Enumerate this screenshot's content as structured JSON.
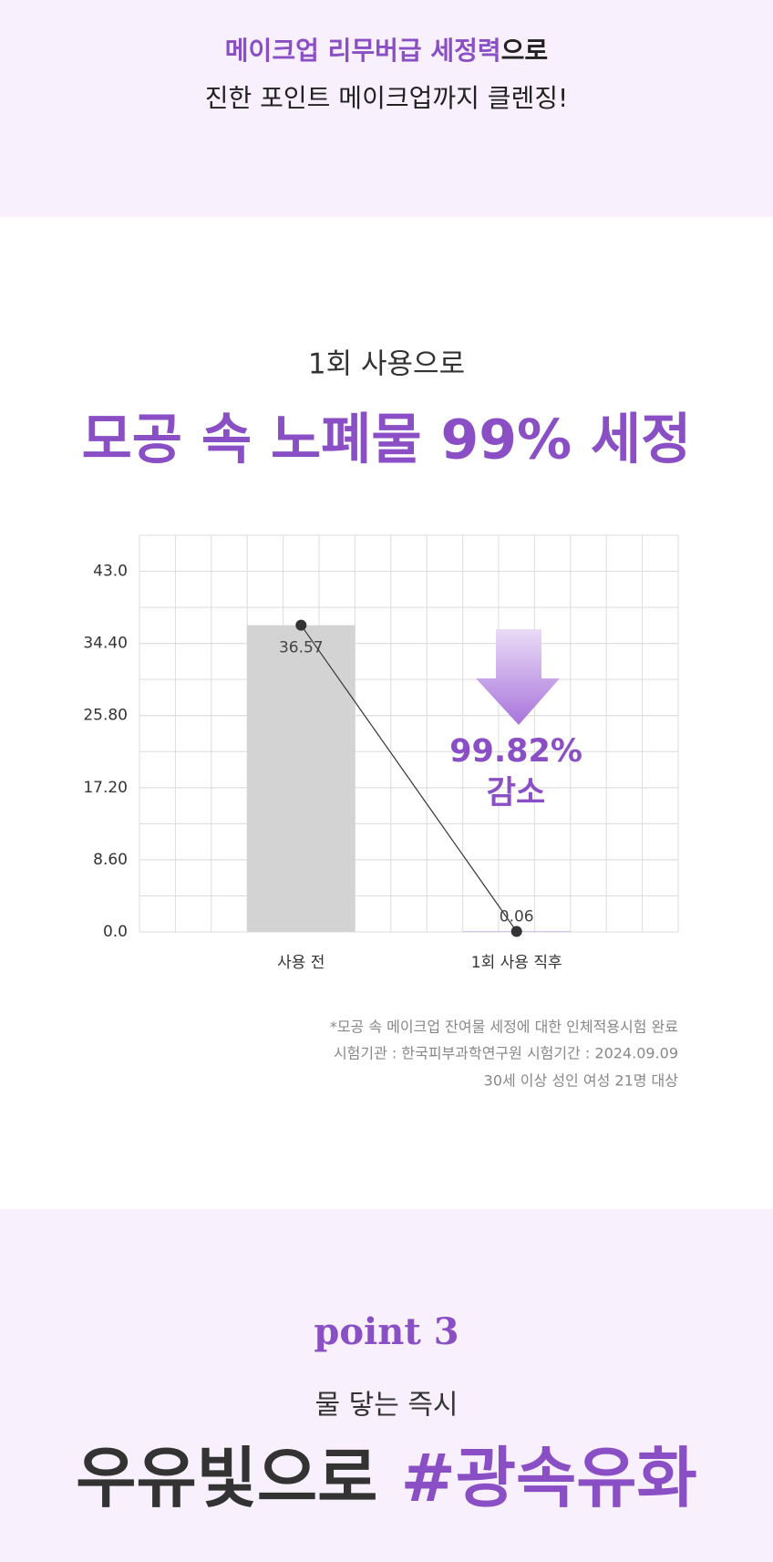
{
  "header": {
    "line1": [
      "메이크업 리무버급 세정력",
      "으로"
    ],
    "line2": "진한 포인트 메이크업까지 클렌징!"
  },
  "chart_data": {
    "type": "bar",
    "subtitle": "1회 사용으로",
    "title": "모공 속 노폐물 99% 세정",
    "categories": [
      "사용 전",
      "1회 사용 직후"
    ],
    "values": [
      36.57,
      0.06
    ],
    "colors": [
      "#d3d3d3",
      "#b48fdc"
    ],
    "line_color": "#333333",
    "ylim": [
      0,
      47.3
    ],
    "yticks": [
      {
        "value": 0,
        "label": "0.0"
      },
      {
        "value": 8.6,
        "label": "8.60"
      },
      {
        "value": 17.2,
        "label": "17.20"
      },
      {
        "value": 25.8,
        "label": "25.80"
      },
      {
        "value": 34.4,
        "label": "34.40"
      },
      {
        "value": 43,
        "label": "43.0"
      }
    ],
    "grid": true,
    "annotation": [
      "99.82%",
      "감소"
    ]
  },
  "footnotes": [
    "*모공 속 메이크업 잔여물 세정에 대한 인체적용시험 완료",
    "시험기관 : 한국피부과학연구원 시험기간 : 2024.09.09",
    "30세 이상 성인 여성 21명 대상"
  ],
  "point": {
    "label": "point 3",
    "subtitle": "물 닿는 즉시",
    "headline": [
      "우유빛으로 ",
      "#광속유화"
    ]
  }
}
